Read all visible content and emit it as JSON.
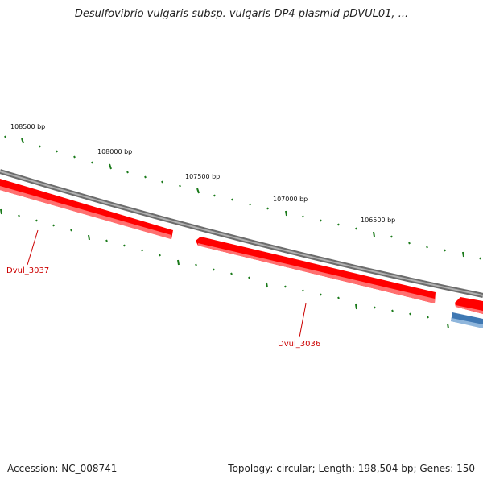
{
  "title": "Desulfovibrio vulgaris subsp. vulgaris DP4 plasmid pDVUL01, ...",
  "footer": {
    "accession": "Accession: NC_008741",
    "stats": "Topology: circular; Length: 198,504 bp; Genes: 150"
  },
  "colors": {
    "backbone": "#8a8a8a",
    "gene_forward": "#ff0000",
    "gene_reverse": "#4a7fb5",
    "tick": "#1a7a1a",
    "gene_label": "#cc0000"
  },
  "bp_labels": [
    {
      "text": "108500 bp"
    },
    {
      "text": "108000 bp"
    },
    {
      "text": "107500 bp"
    },
    {
      "text": "107000 bp"
    },
    {
      "text": "106500 bp"
    }
  ],
  "genes": [
    {
      "name": "Dvul_3037",
      "strand": "reverse"
    },
    {
      "name": "Dvul_3036",
      "strand": "reverse"
    }
  ]
}
